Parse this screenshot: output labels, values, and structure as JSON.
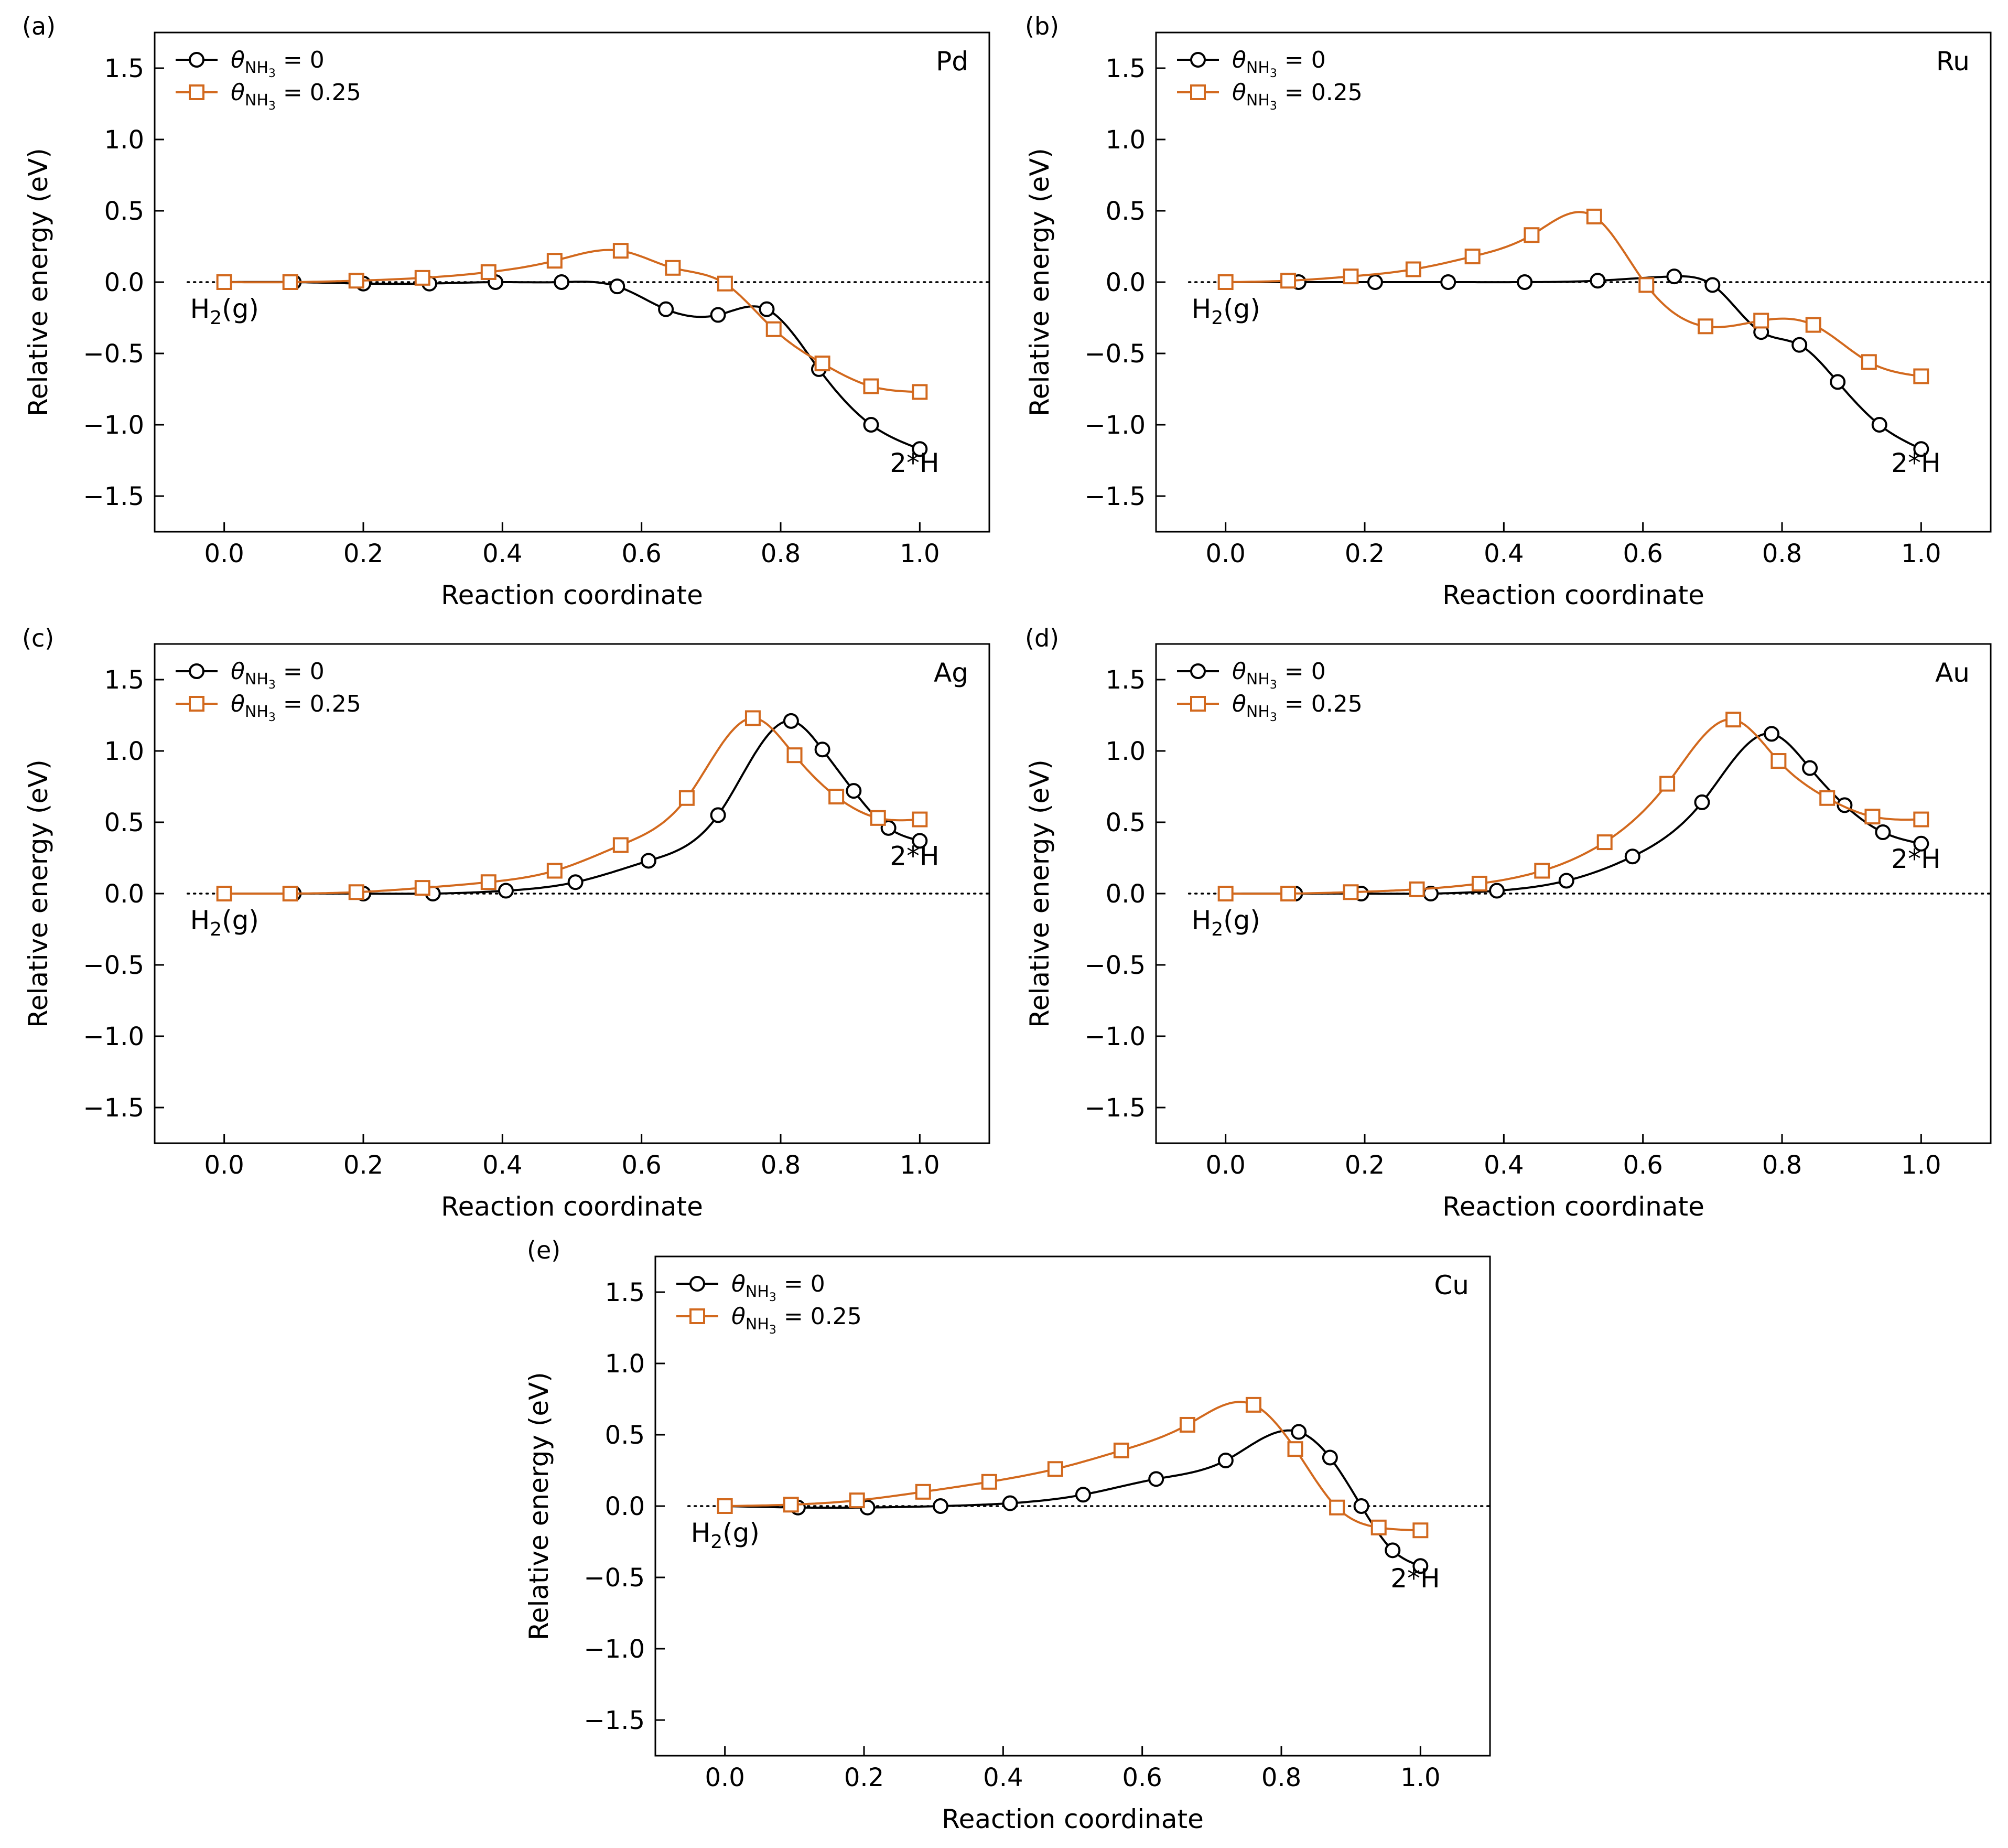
{
  "figure": {
    "series_names": [
      "θNH3 = 0",
      "θNH3 = 0.25"
    ],
    "legend_symbol": "θ",
    "legend_subscript": "NH",
    "legend_subsubscript": "3",
    "legend_values": [
      "= 0",
      "= 0.25"
    ],
    "colors": {
      "series0": "#000000",
      "series1": "#D2691E"
    },
    "start_label_main": "H",
    "start_label_sub": "2",
    "start_label_tail": "(g)",
    "end_label": "2*H"
  },
  "chart_data": [
    {
      "panel": "(a)",
      "metal": "Pd",
      "type": "line",
      "xlabel": "Reaction coordinate",
      "ylabel": "Relative energy (eV)",
      "xlim": [
        -0.1,
        1.1
      ],
      "ylim": [
        -1.75,
        1.75
      ],
      "xticks": [
        "0.0",
        "0.2",
        "0.4",
        "0.6",
        "0.8",
        "1.0"
      ],
      "yticks": [
        "−1.5",
        "−1.0",
        "−0.5",
        "0.0",
        "0.5",
        "1.0",
        "1.5"
      ],
      "start_label": "H2(g)",
      "end_label": "2*H",
      "end_label_at": [
        0.985,
        -1.33
      ],
      "series": [
        {
          "name": "θNH3 = 0",
          "marker": "circle",
          "x": [
            0,
            0.1,
            0.2,
            0.295,
            0.39,
            0.485,
            0.565,
            0.635,
            0.71,
            0.78,
            0.855,
            0.93,
            1.0
          ],
          "y": [
            0,
            0,
            -0.01,
            -0.01,
            0,
            0,
            -0.03,
            -0.19,
            -0.23,
            -0.19,
            -0.61,
            -1.0,
            -1.17
          ]
        },
        {
          "name": "θNH3 = 0.25",
          "marker": "square",
          "x": [
            0,
            0.095,
            0.19,
            0.285,
            0.38,
            0.475,
            0.57,
            0.645,
            0.72,
            0.79,
            0.86,
            0.93,
            1.0
          ],
          "y": [
            0,
            0,
            0.01,
            0.03,
            0.07,
            0.15,
            0.22,
            0.1,
            -0.01,
            -0.33,
            -0.57,
            -0.73,
            -0.77
          ]
        }
      ]
    },
    {
      "panel": "(b)",
      "metal": "Ru",
      "type": "line",
      "xlabel": "Reaction coordinate",
      "ylabel": "Relative energy (eV)",
      "xlim": [
        -0.1,
        1.1
      ],
      "ylim": [
        -1.75,
        1.75
      ],
      "xticks": [
        "0.0",
        "0.2",
        "0.4",
        "0.6",
        "0.8",
        "1.0"
      ],
      "yticks": [
        "−1.5",
        "−1.0",
        "−0.5",
        "0.0",
        "0.5",
        "1.0",
        "1.5"
      ],
      "start_label": "H2(g)",
      "end_label": "2*H",
      "end_label_at": [
        0.985,
        -1.33
      ],
      "series": [
        {
          "name": "θNH3 = 0",
          "marker": "circle",
          "x": [
            0,
            0.105,
            0.215,
            0.32,
            0.43,
            0.535,
            0.645,
            0.7,
            0.77,
            0.825,
            0.88,
            0.94,
            1.0
          ],
          "y": [
            0,
            0,
            0,
            0,
            0,
            0.01,
            0.04,
            -0.02,
            -0.35,
            -0.44,
            -0.7,
            -1.0,
            -1.17
          ]
        },
        {
          "name": "θNH3 = 0.25",
          "marker": "square",
          "x": [
            0,
            0.09,
            0.18,
            0.27,
            0.355,
            0.44,
            0.53,
            0.605,
            0.69,
            0.77,
            0.845,
            0.925,
            1.0
          ],
          "y": [
            0,
            0.01,
            0.04,
            0.09,
            0.18,
            0.33,
            0.46,
            -0.02,
            -0.31,
            -0.27,
            -0.3,
            -0.56,
            -0.66
          ]
        }
      ]
    },
    {
      "panel": "(c)",
      "metal": "Ag",
      "type": "line",
      "xlabel": "Reaction coordinate",
      "ylabel": "Relative energy (eV)",
      "xlim": [
        -0.1,
        1.1
      ],
      "ylim": [
        -1.75,
        1.75
      ],
      "xticks": [
        "0.0",
        "0.2",
        "0.4",
        "0.6",
        "0.8",
        "1.0"
      ],
      "yticks": [
        "−1.5",
        "−1.0",
        "−0.5",
        "0.0",
        "0.5",
        "1.0",
        "1.5"
      ],
      "start_label": "H2(g)",
      "end_label": "2*H",
      "end_label_at": [
        0.985,
        0.2
      ],
      "series": [
        {
          "name": "θNH3 = 0",
          "marker": "circle",
          "x": [
            0,
            0.1,
            0.2,
            0.3,
            0.405,
            0.505,
            0.61,
            0.71,
            0.815,
            0.86,
            0.905,
            0.955,
            1.0
          ],
          "y": [
            0,
            0,
            0,
            0,
            0.02,
            0.08,
            0.23,
            0.55,
            1.21,
            1.01,
            0.72,
            0.46,
            0.37
          ]
        },
        {
          "name": "θNH3 = 0.25",
          "marker": "square",
          "x": [
            0,
            0.095,
            0.19,
            0.285,
            0.38,
            0.475,
            0.57,
            0.665,
            0.76,
            0.82,
            0.88,
            0.94,
            1.0
          ],
          "y": [
            0,
            0,
            0.01,
            0.04,
            0.08,
            0.16,
            0.34,
            0.67,
            1.23,
            0.97,
            0.68,
            0.53,
            0.52
          ]
        }
      ]
    },
    {
      "panel": "(d)",
      "metal": "Au",
      "type": "line",
      "xlabel": "Reaction coordinate",
      "ylabel": "Relative energy (eV)",
      "xlim": [
        -0.1,
        1.1
      ],
      "ylim": [
        -1.75,
        1.75
      ],
      "xticks": [
        "0.0",
        "0.2",
        "0.4",
        "0.6",
        "0.8",
        "1.0"
      ],
      "yticks": [
        "−1.5",
        "−1.0",
        "−0.5",
        "0.0",
        "0.5",
        "1.0",
        "1.5"
      ],
      "start_label": "H2(g)",
      "end_label": "2*H",
      "end_label_at": [
        0.985,
        0.18
      ],
      "series": [
        {
          "name": "θNH3 = 0",
          "marker": "circle",
          "x": [
            0,
            0.1,
            0.195,
            0.295,
            0.39,
            0.49,
            0.585,
            0.685,
            0.785,
            0.84,
            0.89,
            0.945,
            1.0
          ],
          "y": [
            0,
            0,
            0,
            0,
            0.02,
            0.09,
            0.26,
            0.64,
            1.12,
            0.88,
            0.62,
            0.43,
            0.35
          ]
        },
        {
          "name": "θNH3 = 0.25",
          "marker": "square",
          "x": [
            0,
            0.09,
            0.18,
            0.275,
            0.365,
            0.455,
            0.545,
            0.635,
            0.73,
            0.795,
            0.865,
            0.93,
            1.0
          ],
          "y": [
            0,
            0,
            0.01,
            0.03,
            0.07,
            0.16,
            0.36,
            0.77,
            1.22,
            0.93,
            0.67,
            0.54,
            0.52
          ]
        }
      ]
    },
    {
      "panel": "(e)",
      "metal": "Cu",
      "type": "line",
      "xlabel": "Reaction coordinate",
      "ylabel": "Relative energy (eV)",
      "xlim": [
        -0.1,
        1.1
      ],
      "ylim": [
        -1.75,
        1.75
      ],
      "xticks": [
        "0.0",
        "0.2",
        "0.4",
        "0.6",
        "0.8",
        "1.0"
      ],
      "yticks": [
        "−1.5",
        "−1.0",
        "−0.5",
        "0.0",
        "0.5",
        "1.0",
        "1.5"
      ],
      "start_label": "H2(g)",
      "end_label": "2*H",
      "end_label_at": [
        0.985,
        -0.57
      ],
      "series": [
        {
          "name": "θNH3 = 0",
          "marker": "circle",
          "x": [
            0,
            0.105,
            0.205,
            0.31,
            0.41,
            0.515,
            0.62,
            0.72,
            0.825,
            0.87,
            0.915,
            0.96,
            1.0
          ],
          "y": [
            0,
            -0.01,
            -0.01,
            0,
            0.02,
            0.08,
            0.19,
            0.32,
            0.52,
            0.34,
            0,
            -0.31,
            -0.42
          ]
        },
        {
          "name": "θNH3 = 0.25",
          "marker": "square",
          "x": [
            0,
            0.095,
            0.19,
            0.285,
            0.38,
            0.475,
            0.57,
            0.665,
            0.76,
            0.82,
            0.88,
            0.94,
            1.0
          ],
          "y": [
            0,
            0.01,
            0.04,
            0.1,
            0.17,
            0.26,
            0.39,
            0.57,
            0.71,
            0.4,
            -0.01,
            -0.15,
            -0.17
          ]
        }
      ]
    }
  ]
}
